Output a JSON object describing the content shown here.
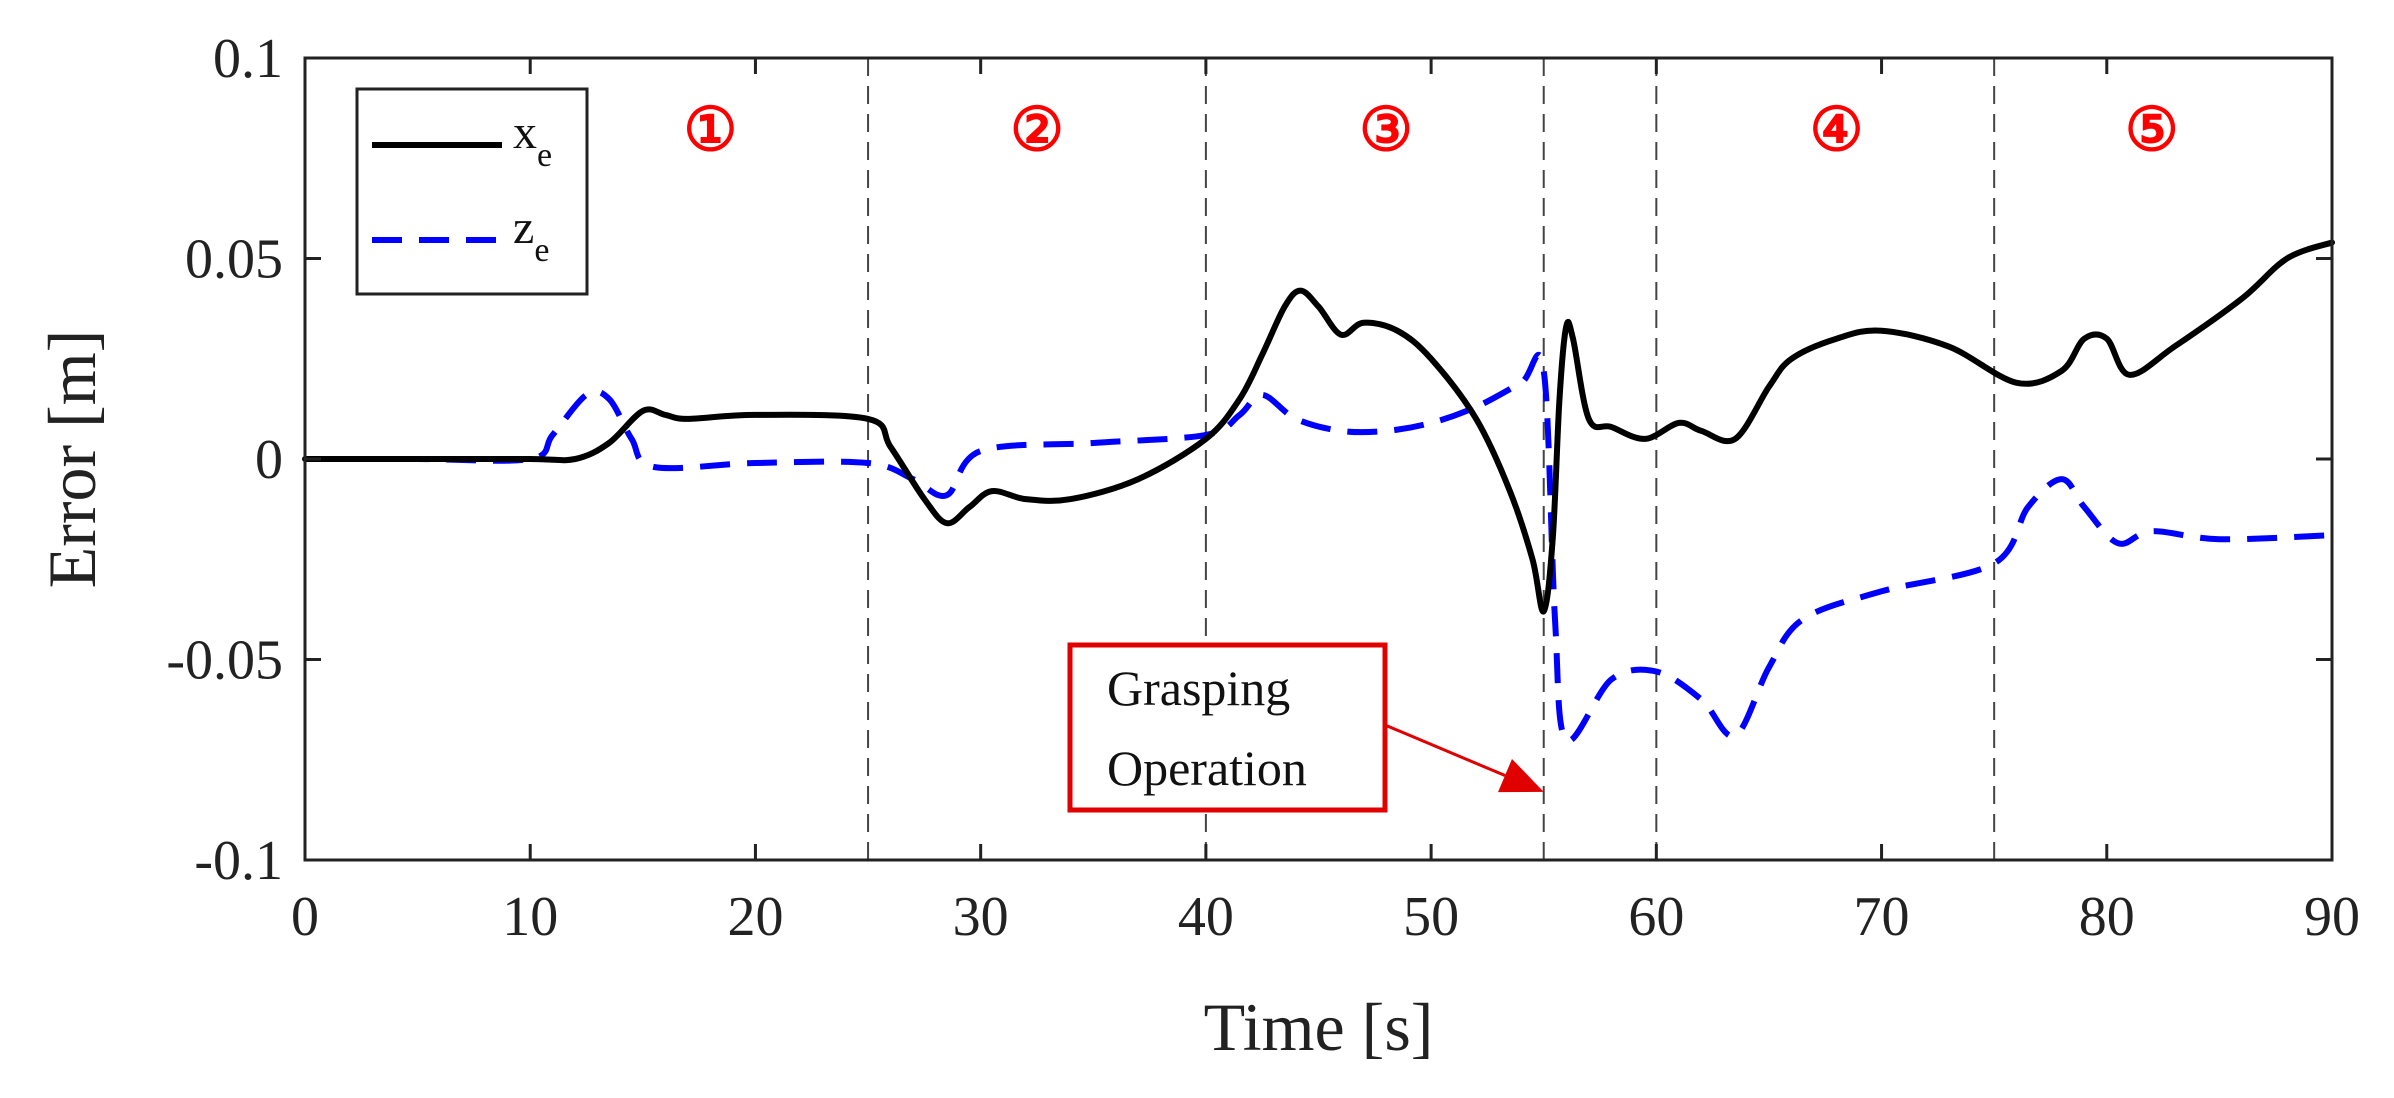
{
  "chart_data": {
    "type": "line",
    "xlabel": "Time [s]",
    "ylabel": "Error [m]",
    "xlim": [
      0,
      90
    ],
    "ylim": [
      -0.1,
      0.1
    ],
    "xticks": [
      0,
      10,
      20,
      30,
      40,
      50,
      60,
      70,
      80,
      90
    ],
    "xtick_labels": [
      "0",
      "10",
      "20",
      "30",
      "40",
      "50",
      "60",
      "70",
      "80",
      "90"
    ],
    "yticks": [
      -0.1,
      -0.05,
      0,
      0.05,
      0.1
    ],
    "ytick_labels": [
      "-0.1",
      "-0.05",
      "0",
      "0.05",
      "0.1"
    ],
    "grid": false,
    "legend_position": "top-left",
    "phase_boundaries": [
      25,
      40,
      55,
      60,
      75
    ],
    "phases": [
      {
        "label": "①",
        "x": 18
      },
      {
        "label": "②",
        "x": 32.5
      },
      {
        "label": "③",
        "x": 48
      },
      {
        "label": "④",
        "x": 68
      },
      {
        "label": "⑤",
        "x": 82
      }
    ],
    "annotation": {
      "text_line1": "Grasping",
      "text_line2": "Operation",
      "target_x": 55,
      "target_y": -0.083
    },
    "series": [
      {
        "name": "x",
        "subscript": "e",
        "color": "#000000",
        "style": "solid",
        "x": [
          0,
          5,
          10,
          12,
          13.5,
          15,
          16,
          17,
          20,
          25,
          26,
          27.5,
          28.5,
          29.5,
          30.5,
          32,
          34,
          37,
          40,
          41.5,
          42.5,
          43.5,
          44.2,
          45,
          46,
          47,
          48.5,
          50,
          52,
          53.5,
          54.5,
          55,
          55.4,
          55.7,
          56,
          56.3,
          57,
          58,
          59.5,
          61,
          62,
          63.5,
          65,
          66,
          68,
          70,
          73,
          76,
          78,
          79,
          80,
          81,
          83,
          86,
          88,
          90
        ],
        "y": [
          0,
          0,
          0,
          0,
          0.004,
          0.012,
          0.011,
          0.01,
          0.011,
          0.01,
          0.003,
          -0.01,
          -0.016,
          -0.012,
          -0.008,
          -0.01,
          -0.01,
          -0.005,
          0.005,
          0.015,
          0.026,
          0.038,
          0.042,
          0.038,
          0.031,
          0.034,
          0.032,
          0.025,
          0.01,
          -0.008,
          -0.025,
          -0.038,
          -0.02,
          0.015,
          0.033,
          0.03,
          0.01,
          0.008,
          0.005,
          0.009,
          0.007,
          0.005,
          0.018,
          0.025,
          0.03,
          0.032,
          0.028,
          0.019,
          0.022,
          0.03,
          0.03,
          0.021,
          0.028,
          0.04,
          0.05,
          0.054
        ]
      },
      {
        "name": "z",
        "subscript": "e",
        "color": "#0000ff",
        "style": "dashed",
        "x": [
          0,
          5,
          10,
          11,
          12.5,
          13.5,
          14.5,
          15.5,
          20,
          25,
          27,
          28.5,
          30,
          35,
          40,
          41.5,
          42.5,
          44,
          46,
          48,
          50,
          52,
          54,
          55,
          55.5,
          56,
          58,
          60,
          62,
          63.5,
          65,
          66.5,
          70,
          75,
          76.5,
          78,
          79,
          80.5,
          82,
          85,
          90
        ],
        "y": [
          0,
          0,
          0,
          0.006,
          0.016,
          0.015,
          0.005,
          -0.002,
          -0.001,
          -0.001,
          -0.005,
          -0.009,
          0.002,
          0.004,
          0.006,
          0.011,
          0.016,
          0.01,
          0.007,
          0.007,
          0.009,
          0.013,
          0.019,
          0.022,
          -0.04,
          -0.07,
          -0.055,
          -0.053,
          -0.06,
          -0.069,
          -0.052,
          -0.04,
          -0.033,
          -0.026,
          -0.012,
          -0.005,
          -0.012,
          -0.021,
          -0.018,
          -0.02,
          -0.019
        ]
      }
    ]
  }
}
